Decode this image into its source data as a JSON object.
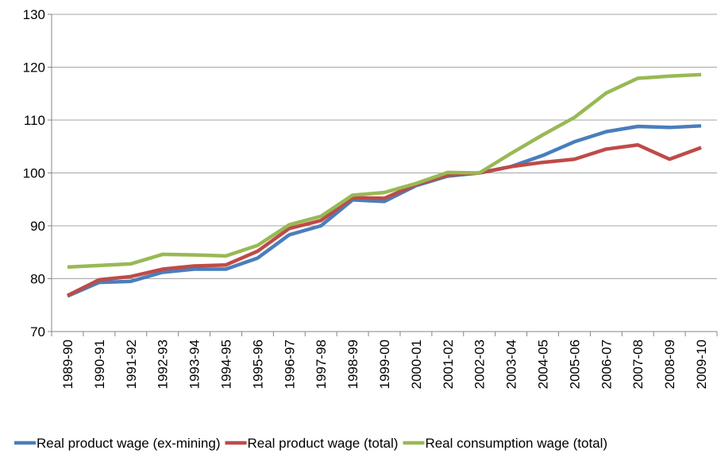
{
  "chart_data": {
    "type": "line",
    "categories": [
      "1989-90",
      "1990-91",
      "1991-92",
      "1992-93",
      "1993-94",
      "1994-95",
      "1995-96",
      "1996-97",
      "1997-98",
      "1998-99",
      "1999-00",
      "2000-01",
      "2001-02",
      "2002-03",
      "2003-04",
      "2004-05",
      "2005-06",
      "2006-07",
      "2007-08",
      "2008-09",
      "2009-10"
    ],
    "series": [
      {
        "name": "Real product wage (ex-mining)",
        "color": "#4a7ebb",
        "values": [
          76.7,
          79.3,
          79.5,
          81.2,
          81.8,
          81.8,
          83.9,
          88.3,
          90.0,
          94.9,
          94.6,
          97.6,
          99.4,
          100,
          101.2,
          103.3,
          105.9,
          107.8,
          108.8,
          108.6,
          108.9
        ]
      },
      {
        "name": "Real product wage (total)",
        "color": "#be4b48",
        "values": [
          76.8,
          79.8,
          80.4,
          81.8,
          82.4,
          82.6,
          85.2,
          89.5,
          91.0,
          95.3,
          95.2,
          97.8,
          99.6,
          100,
          101.2,
          102.0,
          102.6,
          104.5,
          105.3,
          102.6,
          104.8
        ]
      },
      {
        "name": "Real consumption wage (total)",
        "color": "#98b954",
        "values": [
          82.2,
          82.5,
          82.8,
          84.6,
          84.5,
          84.3,
          86.3,
          90.2,
          91.8,
          95.8,
          96.3,
          98.0,
          100.1,
          100.0,
          103.7,
          107.2,
          110.5,
          115.1,
          117.9,
          118.3,
          118.6
        ]
      }
    ],
    "ylim": [
      70,
      130
    ],
    "yticks": [
      70,
      80,
      90,
      100,
      110,
      120,
      130
    ],
    "grid": true,
    "legend": "bottom"
  }
}
